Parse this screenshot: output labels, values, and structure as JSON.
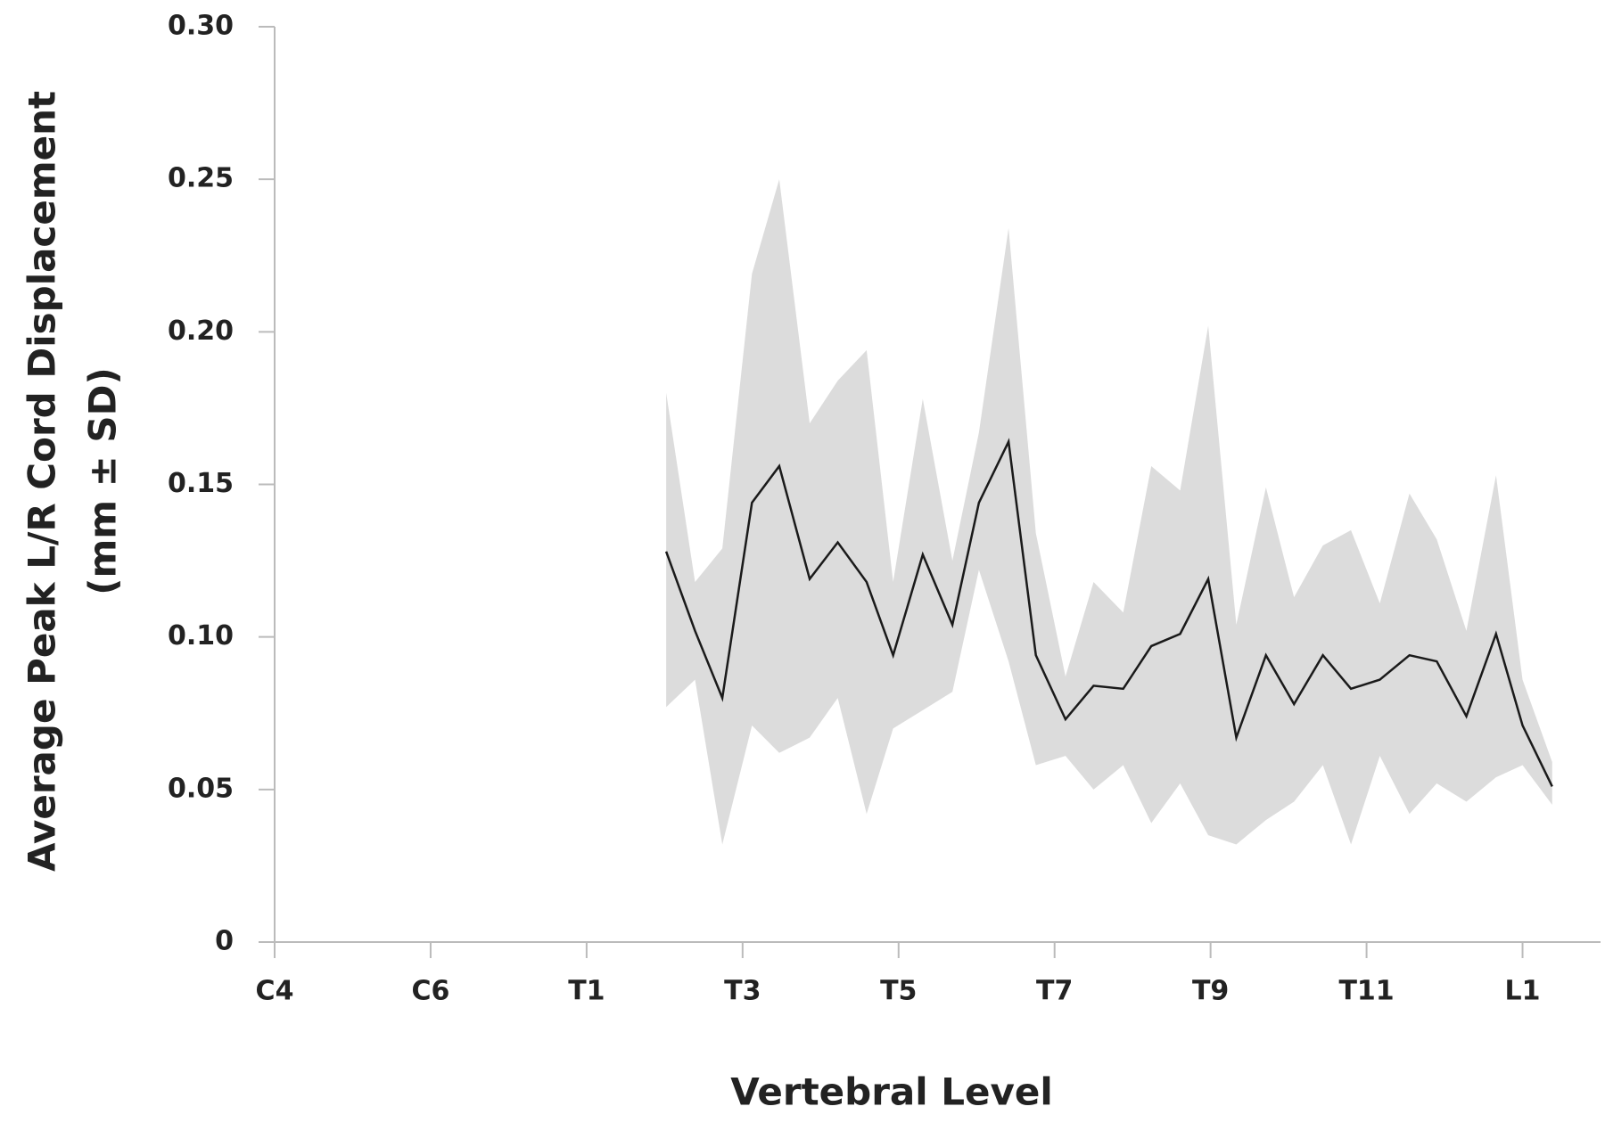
{
  "chart_data": {
    "type": "line_band",
    "ylabel": [
      "Average Peak L/R Cord Displacement",
      "(mm ± SD)"
    ],
    "xlabel": "Vertebral Level",
    "x": [
      5.02,
      5.39,
      5.74,
      6.12,
      6.47,
      6.86,
      7.22,
      7.59,
      7.93,
      8.31,
      8.69,
      9.03,
      9.41,
      9.76,
      10.14,
      10.5,
      10.88,
      11.24,
      11.61,
      11.97,
      12.33,
      12.71,
      13.07,
      13.44,
      13.8,
      14.17,
      14.55,
      14.9,
      15.28,
      15.66,
      16.0,
      16.38
    ],
    "values": [
      0.128,
      0.102,
      0.08,
      0.144,
      0.156,
      0.119,
      0.131,
      0.118,
      0.094,
      0.127,
      0.104,
      0.144,
      0.164,
      0.094,
      0.073,
      0.084,
      0.083,
      0.097,
      0.101,
      0.119,
      0.067,
      0.094,
      0.078,
      0.094,
      0.083,
      0.086,
      0.094,
      0.092,
      0.074,
      0.101,
      0.071,
      0.051
    ],
    "upper": [
      0.18,
      0.118,
      0.129,
      0.219,
      0.25,
      0.17,
      0.184,
      0.194,
      0.118,
      0.178,
      0.125,
      0.167,
      0.234,
      0.134,
      0.087,
      0.118,
      0.108,
      0.156,
      0.148,
      0.202,
      0.104,
      0.149,
      0.113,
      0.13,
      0.135,
      0.111,
      0.147,
      0.132,
      0.102,
      0.153,
      0.086,
      0.059
    ],
    "lower": [
      0.077,
      0.086,
      0.032,
      0.071,
      0.062,
      0.067,
      0.08,
      0.042,
      0.07,
      0.076,
      0.082,
      0.122,
      0.092,
      0.058,
      0.061,
      0.05,
      0.058,
      0.039,
      0.052,
      0.035,
      0.032,
      0.04,
      0.046,
      0.058,
      0.032,
      0.061,
      0.042,
      0.052,
      0.046,
      0.054,
      0.058,
      0.045
    ],
    "color": "#1a1a1a",
    "band_color": "#dcdcdc",
    "xlim": [
      0,
      17
    ],
    "xticks": [
      {
        "value": 0,
        "label": "C4"
      },
      {
        "value": 2,
        "label": "C6"
      },
      {
        "value": 4,
        "label": "T1"
      },
      {
        "value": 6,
        "label": "T3"
      },
      {
        "value": 8,
        "label": "T5"
      },
      {
        "value": 10,
        "label": "T7"
      },
      {
        "value": 12,
        "label": "T9"
      },
      {
        "value": 14,
        "label": "T11"
      },
      {
        "value": 16,
        "label": "L1"
      }
    ],
    "ylim": [
      0,
      0.3
    ],
    "yticks": [
      0,
      0.05,
      {
        "value": 0.1,
        "label": "0.10"
      },
      0.15,
      {
        "value": 0.2,
        "label": "0.20"
      },
      0.25,
      {
        "value": 0.3,
        "label": "0.30"
      }
    ],
    "grid": false
  }
}
